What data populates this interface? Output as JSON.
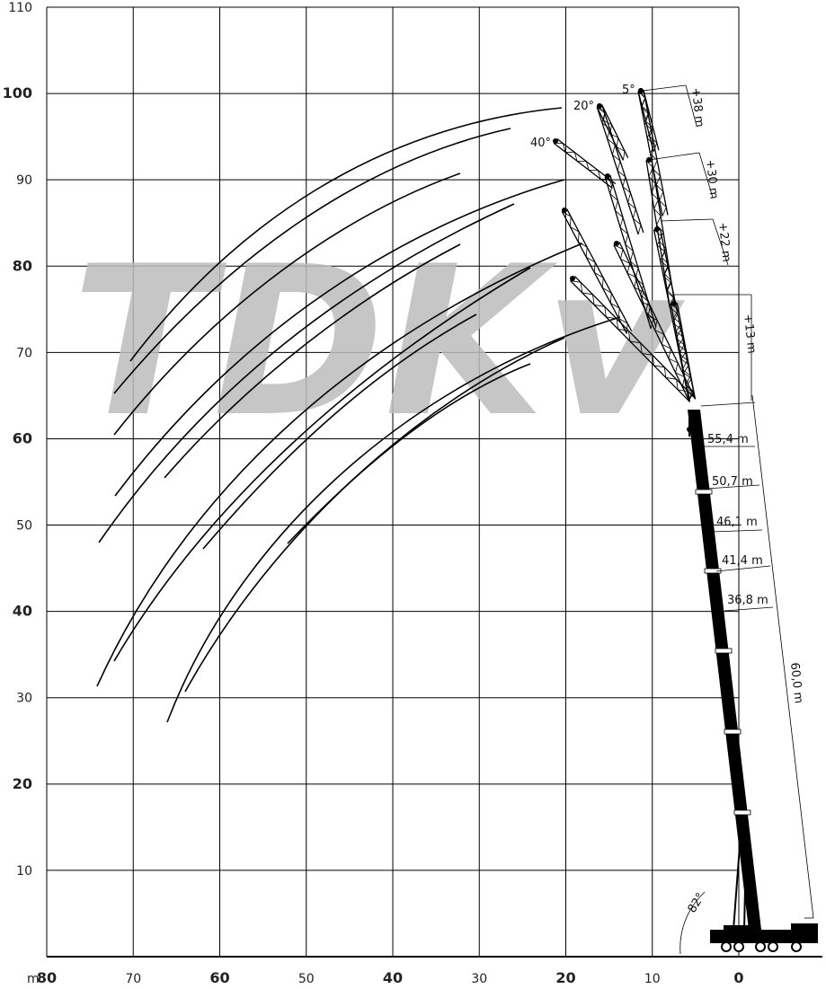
{
  "diagram": {
    "watermark": "TDKv",
    "x_unit": "m",
    "x_ticks": [
      80,
      70,
      60,
      50,
      40,
      30,
      20,
      10,
      0
    ],
    "x_major": [
      80,
      60,
      40,
      20,
      0
    ],
    "y_ticks": [
      10,
      20,
      30,
      40,
      50,
      60,
      70,
      80,
      90,
      100,
      110
    ],
    "y_major": [
      20,
      40,
      60,
      80,
      100
    ],
    "boom_lengths": [
      "55,4 m",
      "50,7 m",
      "46,1 m",
      "41,4 m",
      "36,8 m"
    ],
    "main_boom": "60,0 m",
    "boom_angle": "82°",
    "jib_lengths": [
      "+38 m",
      "+30 m",
      "+22 m",
      "+13 m"
    ],
    "jib_offsets": [
      "5°",
      "20°",
      "40°"
    ],
    "colors": {
      "lines": "#000000",
      "grid": "#000000",
      "watermark": "#bdbdbd"
    }
  }
}
